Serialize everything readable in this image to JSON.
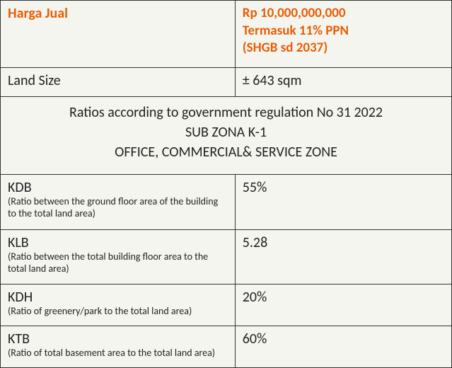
{
  "header": {
    "label": "Harga Jual",
    "value_line1": "Rp 10,000,000,000",
    "value_line2": "Termasuk 11% PPN",
    "value_line3": "(SHGB sd  2037)"
  },
  "land_size": {
    "label": "Land Size",
    "value": "±  643 sqm"
  },
  "section": {
    "line1": "Ratios according to government regulation No 31 2022",
    "line2": "SUB ZONA K-1",
    "line3": "OFFICE, COMMERCIAL& SERVICE ZONE"
  },
  "ratios": {
    "kdb": {
      "label": "KDB",
      "desc": "(Ratio between the ground floor area of the building to the total land area)",
      "value": "55%"
    },
    "klb": {
      "label": "KLB",
      "desc": "(Ratio between the total building floor area to the total land area)",
      "value": "5.28"
    },
    "kdh": {
      "label": "KDH",
      "desc": "(Ratio of greenery/park to the total land area)",
      "value": "20%"
    },
    "ktb": {
      "label": "KTB",
      "desc": "(Ratio of total basement area to the total land area)",
      "value": "60%"
    }
  },
  "colors": {
    "accent": "#e85d04",
    "text": "#222",
    "border": "#333",
    "background": "#f5f5f0"
  }
}
